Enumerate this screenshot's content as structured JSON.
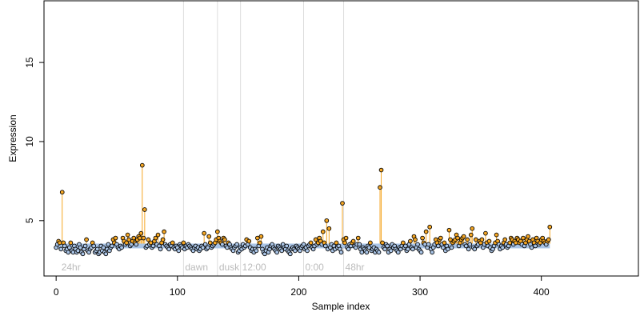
{
  "chart_data": {
    "type": "scatter",
    "xlabel": "Sample index",
    "ylabel": "Expression",
    "xlim": [
      -10,
      480
    ],
    "ylim": [
      1.5,
      18.9
    ],
    "xticks": [
      0,
      100,
      200,
      300,
      400
    ],
    "yticks": [
      5,
      10,
      15
    ],
    "baseline": 3.55,
    "band": [
      3.25,
      3.55
    ],
    "colors": {
      "above": "#f5a623",
      "below": "#a9c4e6",
      "band": "#a9c4e6",
      "outline": "#000000",
      "divider": "#dddddd",
      "period_label": "#bbbbbb"
    },
    "period_markers": [
      {
        "label": "24hr",
        "x": 3
      },
      {
        "label": "dawn",
        "x": 105
      },
      {
        "label": "dusk",
        "x": 133
      },
      {
        "label": "12:00",
        "x": 152
      },
      {
        "label": "0:00",
        "x": 204
      },
      {
        "label": "48hr",
        "x": 237
      }
    ],
    "divider_x": [
      105,
      133,
      152,
      204,
      237
    ],
    "series": [
      {
        "values": [
          3.3,
          3.5,
          3.7,
          3.6,
          3.2,
          6.8,
          3.6,
          3.4,
          3.1,
          3.2,
          3.0,
          3.3,
          3.6,
          3.1,
          3.0,
          3.4,
          3.2,
          3.0,
          3.1,
          3.5,
          3.3,
          3.0,
          2.9,
          3.2,
          3.4,
          3.8,
          3.1,
          3.0,
          3.2,
          3.3,
          3.6,
          3.4,
          3.0,
          3.1,
          3.2,
          2.9,
          3.0,
          3.4,
          3.1,
          3.3,
          3.0,
          2.9,
          3.2,
          3.5,
          3.1,
          3.3,
          3.4,
          3.8,
          3.6,
          3.9,
          3.5,
          3.3,
          3.2,
          3.4,
          3.3,
          3.9,
          3.7,
          3.5,
          3.6,
          4.1,
          3.8,
          3.4,
          3.5,
          3.7,
          3.9,
          3.6,
          3.5,
          3.8,
          4.0,
          3.9,
          4.2,
          8.5,
          3.9,
          5.7,
          3.3,
          3.4,
          3.8,
          3.5,
          3.6,
          3.3,
          3.4,
          3.7,
          3.9,
          3.5,
          4.1,
          3.4,
          3.2,
          3.6,
          3.8,
          4.3,
          3.5,
          3.4,
          3.3,
          3.2,
          3.5,
          3.4,
          3.6,
          3.3,
          3.2,
          3.4,
          3.3,
          3.1,
          3.5,
          3.4,
          3.3,
          3.6,
          3.2,
          3.4,
          3.3,
          3.5,
          3.4,
          3.3,
          3.2,
          3.1,
          3.3,
          3.4,
          3.2,
          3.3,
          3.1,
          3.2,
          3.4,
          3.3,
          4.2,
          3.5,
          3.2,
          3.3,
          4.0,
          3.6,
          3.3,
          3.4,
          3.5,
          3.6,
          3.8,
          4.3,
          3.9,
          3.7,
          3.6,
          3.5,
          3.9,
          3.8,
          3.4,
          3.3,
          3.6,
          3.5,
          3.3,
          3.2,
          3.1,
          3.3,
          3.4,
          3.5,
          3.0,
          3.1,
          3.3,
          3.2,
          3.5,
          3.3,
          3.4,
          3.8,
          3.5,
          3.7,
          3.3,
          3.1,
          3.2,
          3.0,
          3.2,
          3.1,
          3.9,
          3.4,
          3.6,
          4.0,
          3.2,
          3.0,
          2.9,
          3.1,
          3.3,
          3.0,
          3.2,
          3.4,
          3.5,
          3.3,
          3.2,
          3.1,
          3.0,
          3.4,
          3.3,
          3.2,
          3.1,
          3.5,
          3.3,
          3.2,
          3.4,
          3.1,
          3.0,
          2.9,
          3.2,
          3.3,
          3.2,
          3.1,
          3.4,
          3.3,
          3.2,
          3.1,
          3.3,
          3.4,
          3.5,
          3.2,
          3.3,
          3.1,
          3.4,
          3.5,
          3.6,
          3.3,
          3.2,
          3.4,
          3.8,
          3.5,
          3.6,
          3.9,
          3.7,
          3.5,
          4.3,
          3.6,
          3.4,
          5.0,
          3.2,
          4.5,
          3.3,
          3.5,
          3.1,
          3.4,
          3.2,
          3.6,
          3.3,
          3.4,
          3.2,
          3.0,
          6.1,
          3.8,
          3.6,
          3.9,
          3.3,
          3.2,
          3.5,
          3.4,
          3.6,
          3.7,
          3.4,
          3.3,
          3.5,
          3.9,
          3.5,
          3.2,
          3.0,
          3.3,
          3.2,
          3.1,
          3.0,
          3.4,
          3.3,
          3.6,
          3.1,
          3.2,
          3.3,
          3.0,
          3.2,
          3.1,
          3.0,
          7.1,
          8.2,
          3.6,
          3.3,
          3.2,
          3.5,
          3.4,
          3.0,
          3.2,
          3.1,
          3.5,
          3.3,
          3.4,
          3.2,
          3.1,
          3.0,
          3.3,
          3.2,
          3.4,
          3.6,
          3.3,
          3.4,
          3.1,
          3.2,
          3.5,
          3.7,
          3.3,
          3.2,
          4.0,
          3.8,
          3.3,
          3.5,
          3.2,
          3.1,
          3.0,
          3.9,
          3.6,
          3.5,
          4.3,
          3.3,
          3.5,
          4.6,
          3.2,
          3.0,
          3.3,
          3.5,
          3.8,
          3.6,
          3.4,
          3.8,
          3.9,
          3.5,
          3.3,
          3.6,
          3.1,
          3.4,
          3.2,
          4.4,
          3.8,
          3.3,
          3.6,
          3.7,
          3.8,
          4.1,
          3.9,
          3.4,
          3.6,
          3.8,
          3.9,
          4.0,
          3.5,
          3.4,
          3.8,
          3.2,
          3.5,
          4.1,
          4.5,
          3.3,
          3.2,
          3.8,
          3.4,
          3.5,
          3.7,
          3.6,
          3.8,
          3.3,
          3.5,
          4.2,
          3.6,
          3.4,
          3.7,
          3.3,
          3.1,
          3.2,
          3.4,
          3.6,
          4.1,
          3.7,
          3.5,
          3.2,
          3.4,
          3.3,
          3.6,
          3.8,
          3.5,
          3.3,
          3.4,
          3.6,
          3.9,
          3.8,
          3.5,
          3.7,
          3.6,
          3.9,
          3.8,
          3.6,
          3.7,
          3.5,
          3.9,
          3.4,
          3.6,
          3.8,
          4.0,
          3.7,
          3.5,
          3.3,
          3.8,
          3.6,
          3.4,
          3.9,
          3.7,
          3.5,
          3.6,
          3.8,
          3.9,
          3.7,
          3.6,
          3.5,
          3.7,
          3.8,
          4.6
        ]
      }
    ]
  }
}
